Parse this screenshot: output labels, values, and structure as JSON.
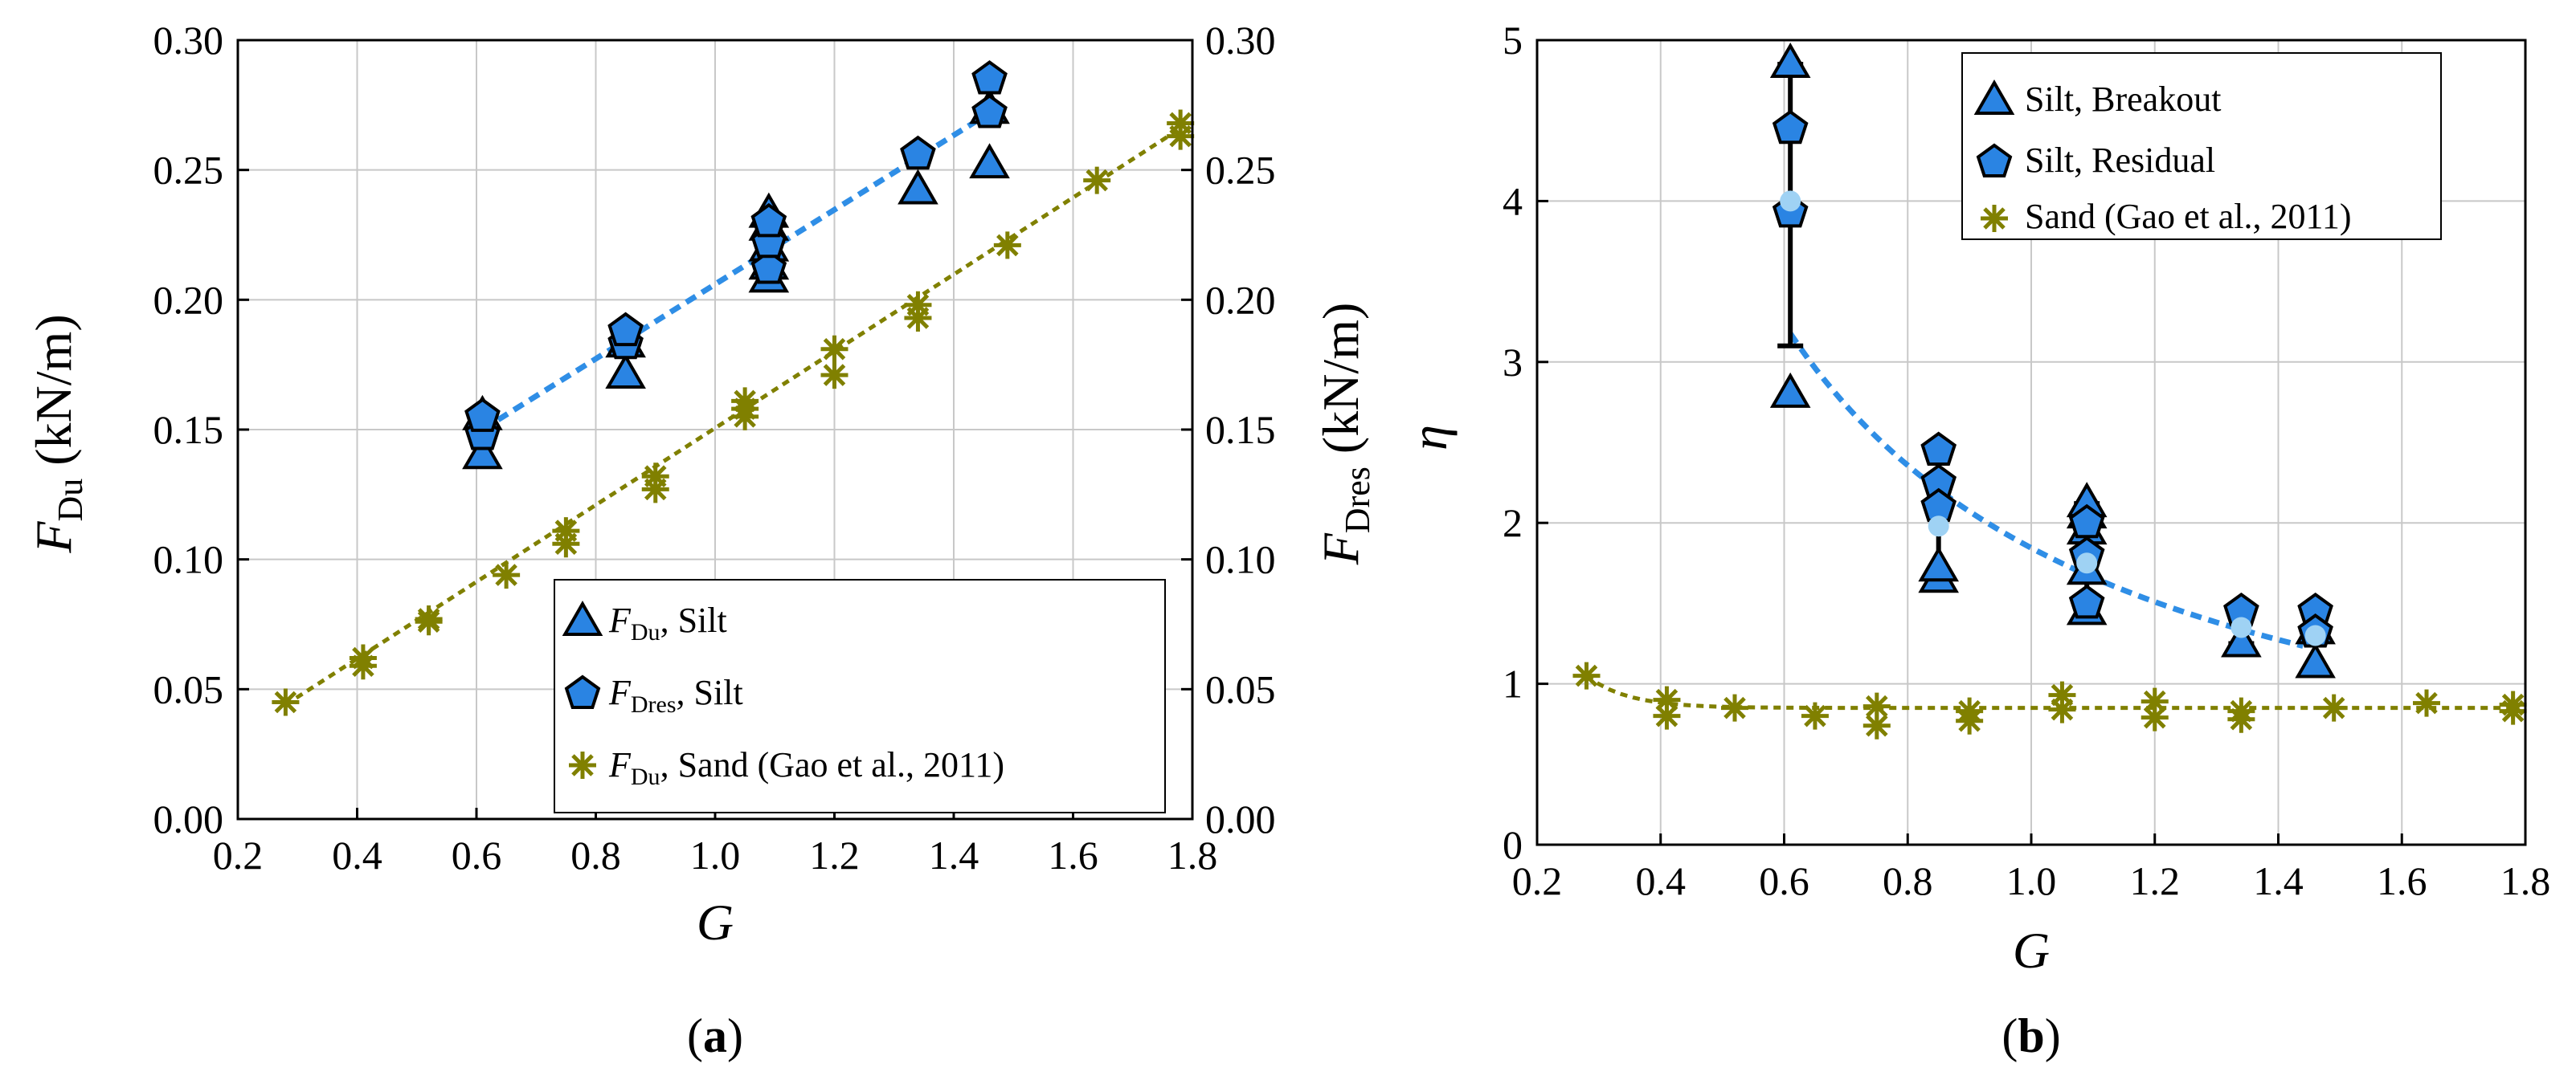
{
  "colors": {
    "silt": "#2a84e3",
    "silt_fit": "#2f8ee6",
    "silt_mean": "#9fd2f4",
    "sand": "#808000",
    "grid": "#c8c8c8"
  },
  "chart_data": [
    {
      "type": "scatter",
      "panel_label": {
        "open": "(",
        "letter": "a",
        "close": ")"
      },
      "xlabel": "G",
      "ylabel_left": {
        "main": "F",
        "sub": "Du",
        "unit": " (kN/m)"
      },
      "ylabel_right": {
        "main": "F",
        "sub": "Dres",
        "unit": " (kN/m)"
      },
      "xlim": [
        0.2,
        1.8
      ],
      "ylim": [
        0.0,
        0.3
      ],
      "x_ticks": [
        "0.2",
        "0.4",
        "0.6",
        "0.8",
        "1.0",
        "1.2",
        "1.4",
        "1.6",
        "1.8"
      ],
      "y_ticks": [
        "0.00",
        "0.05",
        "0.10",
        "0.15",
        "0.20",
        "0.25",
        "0.30"
      ],
      "grid": true,
      "legend_position": "bottom-right",
      "series": [
        {
          "name": "F_Du, Silt",
          "legend": {
            "main": "F",
            "sub": "Du",
            "rest": ", Silt"
          },
          "marker": "triangle",
          "x": [
            0.61,
            0.61,
            0.85,
            0.85,
            1.09,
            1.09,
            1.09,
            1.09,
            1.09,
            1.34,
            1.46,
            1.46
          ],
          "y": [
            0.14,
            0.155,
            0.171,
            0.183,
            0.208,
            0.213,
            0.22,
            0.228,
            0.233,
            0.242,
            0.252,
            0.273
          ]
        },
        {
          "name": "F_Dres, Silt",
          "legend": {
            "main": "F",
            "sub": "Dres",
            "rest": ", Silt"
          },
          "marker": "pentagon",
          "x": [
            0.61,
            0.61,
            0.85,
            0.85,
            1.09,
            1.09,
            1.09,
            1.34,
            1.46,
            1.46
          ],
          "y": [
            0.148,
            0.155,
            0.183,
            0.188,
            0.212,
            0.222,
            0.23,
            0.256,
            0.272,
            0.285
          ]
        },
        {
          "name": "F_Du, Sand (Gao et al., 2011)",
          "legend": {
            "main": "F",
            "sub": "Du",
            "rest": ", Sand (Gao et al., 2011)"
          },
          "marker": "asterisk",
          "x": [
            0.28,
            0.41,
            0.41,
            0.52,
            0.52,
            0.65,
            0.75,
            0.75,
            0.9,
            0.9,
            1.05,
            1.05,
            1.05,
            1.2,
            1.2,
            1.34,
            1.34,
            1.49,
            1.64,
            1.78,
            1.78
          ],
          "y": [
            0.045,
            0.059,
            0.062,
            0.076,
            0.077,
            0.094,
            0.106,
            0.111,
            0.127,
            0.132,
            0.155,
            0.158,
            0.161,
            0.171,
            0.181,
            0.193,
            0.198,
            0.221,
            0.246,
            0.263,
            0.268
          ]
        }
      ],
      "fits": [
        {
          "name": "Silt fit",
          "x": [
            0.61,
            1.46
          ],
          "y": [
            0.15,
            0.272
          ]
        },
        {
          "name": "Sand fit",
          "x": [
            0.28,
            1.78
          ],
          "y": [
            0.044,
            0.266
          ]
        }
      ]
    },
    {
      "type": "scatter",
      "panel_label": {
        "open": "(",
        "letter": "b",
        "close": ")"
      },
      "xlabel": "G",
      "ylabel": "η",
      "xlim": [
        0.2,
        1.8
      ],
      "ylim": [
        0,
        5
      ],
      "x_ticks": [
        "0.2",
        "0.4",
        "0.6",
        "0.8",
        "1.0",
        "1.2",
        "1.4",
        "1.6",
        "1.8"
      ],
      "y_ticks": [
        "0",
        "1",
        "2",
        "3",
        "4",
        "5"
      ],
      "grid": true,
      "legend_position": "top-right",
      "series": [
        {
          "name": "Silt, Breakout",
          "marker": "triangle",
          "x": [
            0.61,
            0.61,
            0.85,
            0.85,
            1.09,
            1.09,
            1.09,
            1.09,
            1.09,
            1.34,
            1.46,
            1.46
          ],
          "y": [
            4.85,
            2.8,
            1.65,
            1.72,
            1.45,
            1.7,
            1.95,
            2.05,
            2.12,
            1.25,
            1.12,
            1.33
          ]
        },
        {
          "name": "Silt, Residual",
          "marker": "pentagon",
          "x": [
            0.61,
            0.61,
            0.85,
            0.85,
            0.85,
            1.09,
            1.09,
            1.09,
            1.34,
            1.46,
            1.46
          ],
          "y": [
            4.45,
            3.93,
            2.45,
            2.25,
            2.1,
            1.5,
            1.8,
            2.0,
            1.45,
            1.45,
            1.32
          ]
        },
        {
          "name": "Sand (Gao et al., 2011)",
          "marker": "asterisk",
          "x": [
            0.28,
            0.41,
            0.41,
            0.52,
            0.65,
            0.75,
            0.75,
            0.9,
            0.9,
            1.05,
            1.05,
            1.2,
            1.2,
            1.34,
            1.34,
            1.49,
            1.64,
            1.78,
            1.78
          ],
          "y": [
            1.05,
            0.9,
            0.8,
            0.85,
            0.8,
            0.86,
            0.74,
            0.83,
            0.77,
            0.93,
            0.84,
            0.89,
            0.79,
            0.83,
            0.78,
            0.85,
            0.88,
            0.87,
            0.83
          ]
        }
      ],
      "mean_points": {
        "x": [
          0.61,
          0.85,
          1.09,
          1.34,
          1.46
        ],
        "y": [
          4.0,
          1.98,
          1.75,
          1.35,
          1.3
        ],
        "error_low": [
          3.1,
          1.65,
          1.4,
          1.25,
          1.1
        ],
        "error_high": [
          4.85,
          2.45,
          2.12,
          1.45,
          1.45
        ]
      },
      "fits": [
        {
          "name": "Silt fit",
          "type": "power",
          "x_range": [
            0.61,
            1.44
          ],
          "coef": 1.8445,
          "exp": -1.1
        },
        {
          "name": "Sand fit",
          "type": "decay",
          "x_range": [
            0.28,
            1.78
          ],
          "base": 0.85,
          "amp": 0.2,
          "x0": 0.28,
          "k": 15
        }
      ]
    }
  ]
}
